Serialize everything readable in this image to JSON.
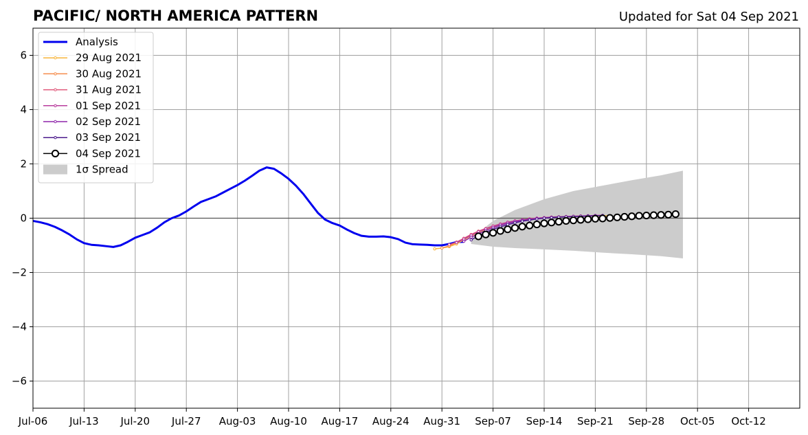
{
  "chart_data": {
    "type": "line",
    "title": "PACIFIC/ NORTH AMERICA PATTERN",
    "subtitle": "Updated for Sat 04 Sep 2021",
    "xlabel": "",
    "ylabel": "",
    "xlim": [
      "2021-07-06",
      "2021-10-19"
    ],
    "ylim": [
      -7,
      7
    ],
    "x_tick_labels": [
      "Jul-06",
      "Jul-13",
      "Jul-20",
      "Jul-27",
      "Aug-03",
      "Aug-10",
      "Aug-17",
      "Aug-24",
      "Aug-31",
      "Sep-07",
      "Sep-14",
      "Sep-21",
      "Sep-28",
      "Oct-05",
      "Oct-12"
    ],
    "y_ticks": [
      -6,
      -4,
      -2,
      0,
      2,
      4,
      6
    ],
    "y_tick_labels": [
      "−6",
      "−4",
      "−2",
      "0",
      "2",
      "4",
      "6"
    ],
    "grid": true,
    "legend_position": "top-left",
    "spread_label": "1σ Spread",
    "spread": {
      "dates": [
        "2021-09-04",
        "2021-09-07",
        "2021-09-10",
        "2021-09-14",
        "2021-09-18",
        "2021-09-22",
        "2021-09-26",
        "2021-09-30",
        "2021-10-03"
      ],
      "upper": [
        -0.75,
        -0.1,
        0.3,
        0.7,
        1.0,
        1.2,
        1.4,
        1.58,
        1.75
      ],
      "lower": [
        -0.95,
        -1.05,
        -1.1,
        -1.15,
        -1.2,
        -1.27,
        -1.33,
        -1.4,
        -1.48
      ]
    },
    "series": [
      {
        "name": "Analysis",
        "color": "#0000ee",
        "start_date": "2021-07-06",
        "values": [
          -0.1,
          -0.15,
          -0.22,
          -0.32,
          -0.45,
          -0.6,
          -0.78,
          -0.92,
          -0.98,
          -1.0,
          -1.03,
          -1.06,
          -1.0,
          -0.87,
          -0.72,
          -0.62,
          -0.52,
          -0.35,
          -0.15,
          0.0,
          0.1,
          0.25,
          0.43,
          0.6,
          0.7,
          0.8,
          0.94,
          1.08,
          1.22,
          1.38,
          1.56,
          1.75,
          1.87,
          1.82,
          1.65,
          1.45,
          1.2,
          0.9,
          0.55,
          0.2,
          -0.05,
          -0.18,
          -0.27,
          -0.42,
          -0.55,
          -0.65,
          -0.68,
          -0.68,
          -0.67,
          -0.7,
          -0.77,
          -0.9,
          -0.96,
          -0.97,
          -0.98,
          -1.0,
          -1.0,
          -0.95,
          -0.88,
          -0.87
        ]
      },
      {
        "name": "29 Aug 2021",
        "color": "#f7b43a",
        "start_date": "2021-08-30",
        "values": [
          -1.13,
          -1.1,
          -1.05,
          -0.95,
          -0.8,
          -0.65,
          -0.52,
          -0.42,
          -0.33,
          -0.25,
          -0.18,
          -0.12,
          -0.08,
          -0.04,
          -0.01,
          0.01,
          0.03,
          0.04,
          0.05,
          0.06,
          0.07,
          0.08,
          0.08,
          0.09,
          0.09
        ]
      },
      {
        "name": "30 Aug 2021",
        "color": "#f58b4a",
        "start_date": "2021-08-31",
        "values": [
          -1.1,
          -1.02,
          -0.9,
          -0.75,
          -0.6,
          -0.48,
          -0.38,
          -0.29,
          -0.22,
          -0.15,
          -0.1,
          -0.06,
          -0.02,
          0.0,
          0.02,
          0.04,
          0.05,
          0.06,
          0.07,
          0.08,
          0.08,
          0.09,
          0.1
        ]
      },
      {
        "name": "31 Aug 2021",
        "color": "#e0587a",
        "start_date": "2021-09-01",
        "values": [
          -0.98,
          -0.88,
          -0.74,
          -0.6,
          -0.48,
          -0.38,
          -0.29,
          -0.21,
          -0.15,
          -0.1,
          -0.06,
          -0.03,
          0.0,
          0.02,
          0.04,
          0.05,
          0.06,
          0.07,
          0.08,
          0.09,
          0.1,
          0.1
        ]
      },
      {
        "name": "01 Sep 2021",
        "color": "#b83b9c",
        "start_date": "2021-09-02",
        "values": [
          -0.9,
          -0.77,
          -0.63,
          -0.5,
          -0.39,
          -0.3,
          -0.22,
          -0.15,
          -0.1,
          -0.06,
          -0.03,
          0.0,
          0.02,
          0.04,
          0.05,
          0.06,
          0.07,
          0.08,
          0.09,
          0.1,
          0.1
        ]
      },
      {
        "name": "02 Sep 2021",
        "color": "#8e24aa",
        "start_date": "2021-09-03",
        "values": [
          -0.85,
          -0.7,
          -0.57,
          -0.45,
          -0.35,
          -0.26,
          -0.19,
          -0.13,
          -0.08,
          -0.04,
          -0.01,
          0.01,
          0.03,
          0.04,
          0.05,
          0.06,
          0.07,
          0.08,
          0.09,
          0.1
        ]
      },
      {
        "name": "03 Sep 2021",
        "color": "#4b1a8c",
        "start_date": "2021-09-04",
        "values": [
          -0.8,
          -0.65,
          -0.52,
          -0.41,
          -0.32,
          -0.24,
          -0.17,
          -0.11,
          -0.07,
          -0.03,
          0.0,
          0.02,
          0.04,
          0.05,
          0.06,
          0.07,
          0.08,
          0.09,
          0.1
        ]
      },
      {
        "name": "04 Sep 2021",
        "color": "#000000",
        "start_date": "2021-09-05",
        "values": [
          -0.67,
          -0.6,
          -0.54,
          -0.47,
          -0.41,
          -0.36,
          -0.31,
          -0.27,
          -0.23,
          -0.19,
          -0.16,
          -0.13,
          -0.1,
          -0.08,
          -0.06,
          -0.04,
          -0.02,
          -0.01,
          0.01,
          0.03,
          0.05,
          0.07,
          0.09,
          0.1,
          0.11,
          0.12,
          0.13,
          0.15
        ]
      }
    ]
  }
}
